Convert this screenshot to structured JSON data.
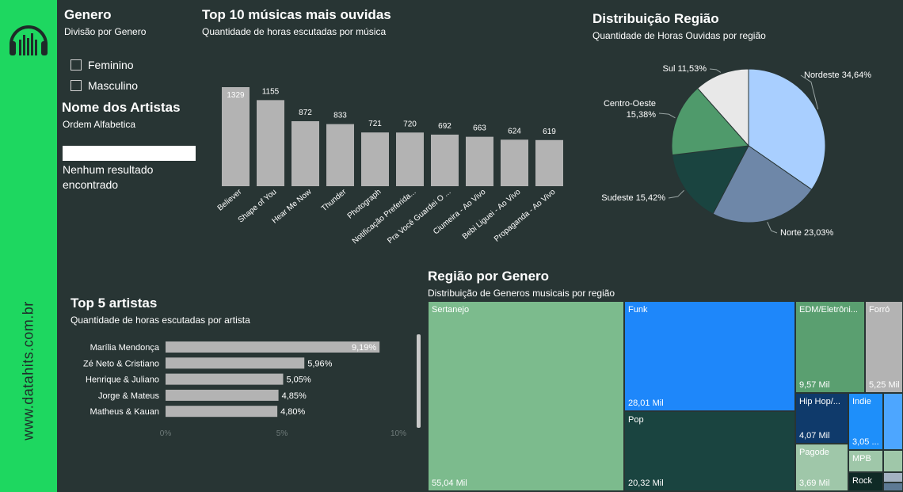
{
  "sidebar": {
    "logo_icon": "headphones-icon",
    "site": "www.datahits.com.br"
  },
  "genero": {
    "title": "Genero",
    "subtitle": "Divisão por Genero",
    "options": [
      "Feminino",
      "Masculino"
    ]
  },
  "artistas": {
    "title": "Nome dos Artistas",
    "subtitle": "Ordem Alfabetica",
    "search_value": "",
    "empty_text": "Nenhum resultado encontrado"
  },
  "top10": {
    "title": "Top 10 músicas mais ouvidas",
    "subtitle": "Quantidade de horas escutadas por música",
    "chart_data": {
      "type": "bar",
      "categories": [
        "Believer",
        "Shape of You",
        "Hear Me Now",
        "Thunder",
        "Photograph",
        "Notificação Preferida...",
        "Pra Você Guardei O ...",
        "Ciumeira - Ao Vivo",
        "Bebi Liguei - Ao Vivo",
        "Propaganda - Ao Vivo"
      ],
      "values": [
        1329,
        1155,
        872,
        833,
        721,
        720,
        692,
        663,
        624,
        619
      ],
      "color": "#b3b3b3"
    }
  },
  "regiao": {
    "title": "Distribuição Região",
    "subtitle": "Quantidade de Horas Ouvidas por região",
    "chart_data": {
      "type": "pie",
      "slices": [
        {
          "label": "Nordeste",
          "value": 34.64,
          "text": "34,64%",
          "color": "#a9cfff"
        },
        {
          "label": "Norte",
          "value": 23.03,
          "text": "23,03%",
          "color": "#6e87a8"
        },
        {
          "label": "Sudeste",
          "value": 15.42,
          "text": "15,42%",
          "color": "#1a4440"
        },
        {
          "label": "Centro-Oeste",
          "value": 15.38,
          "text": "15,38%",
          "color": "#4f9a6b"
        },
        {
          "label": "Sul",
          "value": 11.53,
          "text": "11,53%",
          "color": "#e8e8e8"
        }
      ]
    }
  },
  "top5": {
    "title": "Top 5 artistas",
    "subtitle": "Quantidade de horas escutadas por artista",
    "chart_data": {
      "type": "bar",
      "orientation": "horizontal",
      "categories": [
        "Marília Mendonça",
        "Zé Neto & Cristiano",
        "Henrique & Juliano",
        "Jorge & Mateus",
        "Matheus & Kauan"
      ],
      "values": [
        9.19,
        5.96,
        5.05,
        4.85,
        4.8
      ],
      "value_labels": [
        "9,19%",
        "5,96%",
        "5,05%",
        "4,85%",
        "4,80%"
      ],
      "xlim": [
        0,
        10
      ],
      "ticks": [
        0,
        5,
        10
      ],
      "tick_labels": [
        "0%",
        "5%",
        "10%"
      ],
      "color": "#b3b3b3"
    }
  },
  "genero_regiao": {
    "title": "Região por Genero",
    "subtitle": "Distribuição de Generos musicais por região",
    "chart_data": {
      "type": "treemap",
      "items": [
        {
          "label": "Sertanejo",
          "value": 55.04,
          "text": "55,04 Mil",
          "color": "#7cbb8d"
        },
        {
          "label": "Funk",
          "value": 28.01,
          "text": "28,01 Mil",
          "color": "#1e87fa"
        },
        {
          "label": "Pop",
          "value": 20.32,
          "text": "20,32 Mil",
          "color": "#1a4440"
        },
        {
          "label": "EDM/Eletrôni...",
          "value": 9.57,
          "text": "9,57 Mil",
          "color": "#5a9f70"
        },
        {
          "label": "Forró",
          "value": 5.25,
          "text": "5,25 Mil",
          "color": "#b3b3b3"
        },
        {
          "label": "Hip Hop/...",
          "value": 4.07,
          "text": "4,07 Mil",
          "color": "#0f3a6b"
        },
        {
          "label": "Indie",
          "value": 3.05,
          "text": "3,05 ...",
          "color": "#1e8ffa"
        },
        {
          "label": "Pagode",
          "value": 3.69,
          "text": "3,69 Mil",
          "color": "#9fc7a9"
        },
        {
          "label": "MPB",
          "value": null,
          "text": "",
          "color": "#9fc7a9"
        },
        {
          "label": "Rock",
          "value": null,
          "text": "",
          "color": "#0f2a26"
        }
      ]
    }
  }
}
